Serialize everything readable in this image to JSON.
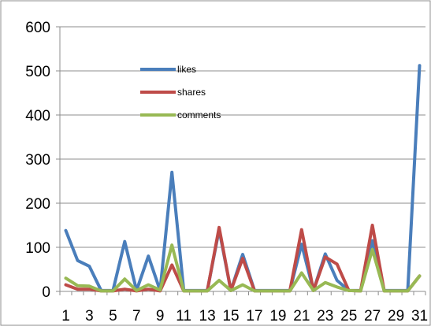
{
  "chart_data": {
    "type": "line",
    "title": "",
    "xlabel": "",
    "ylabel": "",
    "x": [
      1,
      2,
      3,
      4,
      5,
      6,
      7,
      8,
      9,
      10,
      11,
      12,
      13,
      14,
      15,
      16,
      17,
      18,
      19,
      20,
      21,
      22,
      23,
      24,
      25,
      26,
      27,
      28,
      29,
      30,
      31
    ],
    "x_tick_labels": [
      "1",
      "3",
      "5",
      "7",
      "9",
      "11",
      "13",
      "15",
      "17",
      "19",
      "21",
      "23",
      "25",
      "27",
      "29",
      "31"
    ],
    "ylim": [
      0,
      600
    ],
    "y_ticks": [
      0,
      100,
      200,
      300,
      400,
      500,
      600
    ],
    "grid": "horizontal",
    "legend_position": "upper-center",
    "series": [
      {
        "name": "likes",
        "color": "#4a7ebb",
        "values": [
          138,
          70,
          57,
          2,
          2,
          113,
          2,
          80,
          2,
          270,
          2,
          2,
          2,
          140,
          2,
          84,
          2,
          2,
          2,
          2,
          107,
          2,
          85,
          25,
          2,
          2,
          115,
          2,
          2,
          2,
          512
        ]
      },
      {
        "name": "shares",
        "color": "#be4b48",
        "values": [
          15,
          5,
          5,
          1,
          1,
          5,
          1,
          5,
          1,
          60,
          1,
          1,
          1,
          145,
          2,
          75,
          1,
          1,
          1,
          1,
          140,
          2,
          78,
          62,
          2,
          1,
          150,
          1,
          1,
          1,
          35
        ]
      },
      {
        "name": "comments",
        "color": "#98b954",
        "values": [
          30,
          13,
          12,
          1,
          1,
          28,
          2,
          15,
          3,
          105,
          1,
          1,
          1,
          25,
          2,
          15,
          1,
          1,
          1,
          1,
          42,
          2,
          20,
          10,
          2,
          1,
          95,
          1,
          1,
          1,
          35
        ]
      }
    ]
  }
}
